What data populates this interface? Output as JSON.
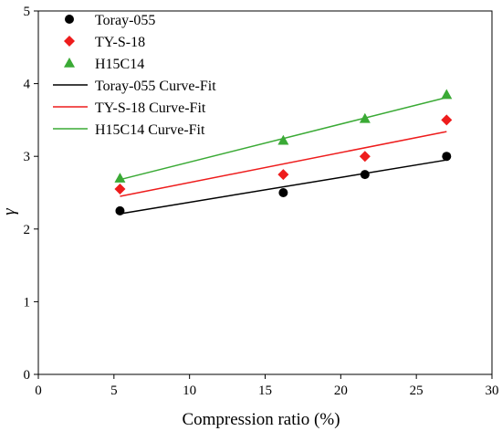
{
  "chart_data": {
    "type": "scatter",
    "title": "",
    "xlabel": "Compression ratio (%)",
    "ylabel": "γ",
    "xlim": [
      0,
      30
    ],
    "ylim": [
      0,
      5
    ],
    "xticks": [
      0,
      5,
      10,
      15,
      20,
      25,
      30
    ],
    "yticks": [
      0,
      1,
      2,
      3,
      4,
      5
    ],
    "grid": false,
    "legend_position": "top-left",
    "series": [
      {
        "name": "Toray-055",
        "marker": "circle",
        "color": "#000000",
        "x": [
          5.4,
          16.2,
          21.6,
          27.0
        ],
        "y": [
          2.25,
          2.5,
          2.75,
          3.0
        ]
      },
      {
        "name": "TY-S-18",
        "marker": "diamond",
        "color": "#ee1c1c",
        "x": [
          5.4,
          16.2,
          21.6,
          27.0
        ],
        "y": [
          2.55,
          2.75,
          3.0,
          3.5
        ]
      },
      {
        "name": "H15C14",
        "marker": "triangle",
        "color": "#3aaa35",
        "x": [
          5.4,
          16.2,
          21.6,
          27.0
        ],
        "y": [
          2.7,
          3.22,
          3.52,
          3.85
        ]
      }
    ],
    "fits": [
      {
        "name": "Toray-055  Curve-Fit",
        "color": "#000000",
        "x": [
          5.4,
          27.0
        ],
        "y": [
          2.21,
          2.95
        ]
      },
      {
        "name": "TY-S-18 Curve-Fit",
        "color": "#ee1c1c",
        "x": [
          5.4,
          27.0
        ],
        "y": [
          2.45,
          3.34
        ]
      },
      {
        "name": "H15C14 Curve-Fit",
        "color": "#3aaa35",
        "x": [
          5.4,
          27.0
        ],
        "y": [
          2.68,
          3.81
        ]
      }
    ]
  }
}
